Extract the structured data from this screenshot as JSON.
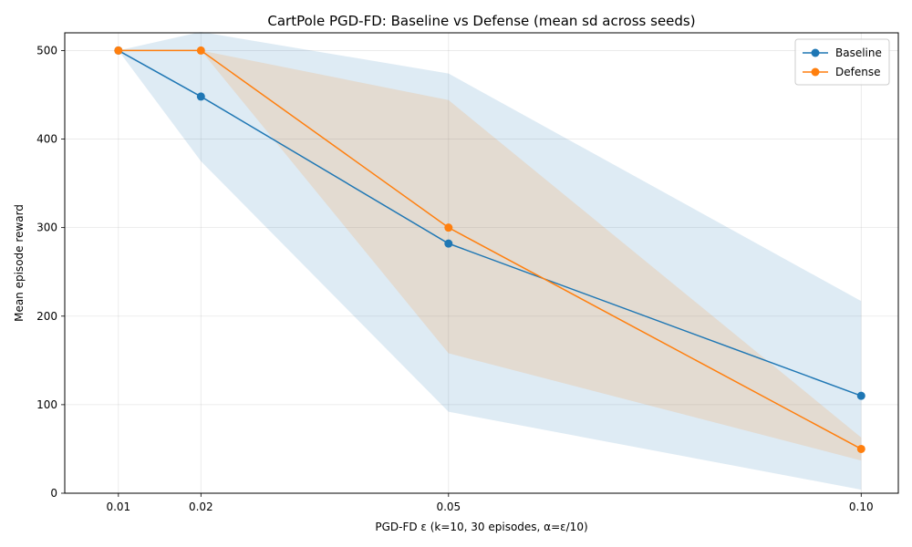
{
  "chart_data": {
    "type": "line",
    "title": "CartPole  PGD-FD: Baseline vs Defense (mean  sd across seeds)",
    "xlabel": "PGD-FD ε  (k=10, 30 episodes, α=ε/10)",
    "ylabel": "Mean episode reward",
    "x": [
      0.01,
      0.02,
      0.05,
      0.1
    ],
    "xtick_labels": [
      "0.01",
      "0.02",
      "0.05",
      "0.10"
    ],
    "xlim": [
      0.0035,
      0.1045
    ],
    "ylim": [
      0,
      520
    ],
    "yticks": [
      0,
      100,
      200,
      300,
      400,
      500
    ],
    "grid": true,
    "legend_position": "top-right",
    "series": [
      {
        "name": "Baseline",
        "color": "#1f77b4",
        "values": [
          500,
          448,
          282,
          110
        ],
        "lower": [
          500,
          375,
          92,
          4
        ],
        "upper": [
          500,
          521,
          474,
          217
        ]
      },
      {
        "name": "Defense",
        "color": "#ff7f0e",
        "values": [
          500,
          500,
          300,
          50
        ],
        "lower": [
          500,
          500,
          158,
          37
        ],
        "upper": [
          500,
          500,
          444,
          63
        ]
      }
    ]
  }
}
